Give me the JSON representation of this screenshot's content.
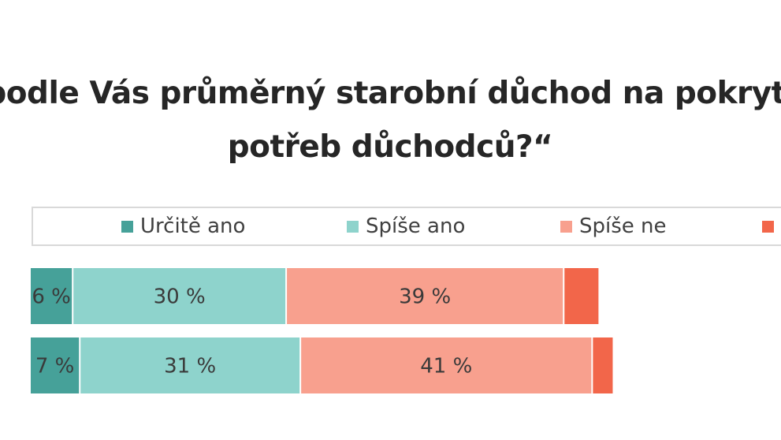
{
  "title_lines": [
    "podle Vás průměrný starobní důchod na pokrytí",
    "potřeb důchodců?“"
  ],
  "chart_data": {
    "type": "bar",
    "orientation": "horizontal",
    "stacked": true,
    "title": "podle Vás průměrný starobní důchod na pokrytí potřeb důchodců?“",
    "legend_position": "top",
    "grid": false,
    "series": [
      {
        "name": "Určitě ano",
        "color": "#46a199",
        "values": [
          6,
          7
        ],
        "labels": [
          "6 %",
          "7 %"
        ]
      },
      {
        "name": "Spíše ano",
        "color": "#8ed3cc",
        "values": [
          30,
          31
        ],
        "labels": [
          "30 %",
          "31 %"
        ]
      },
      {
        "name": "Spíše ne",
        "color": "#f8a08e",
        "values": [
          39,
          41
        ],
        "labels": [
          "39 %",
          "41 %"
        ]
      },
      {
        "name": "",
        "color": "#f2664a",
        "values": [
          5,
          3
        ],
        "labels": [
          "",
          ""
        ]
      }
    ]
  }
}
